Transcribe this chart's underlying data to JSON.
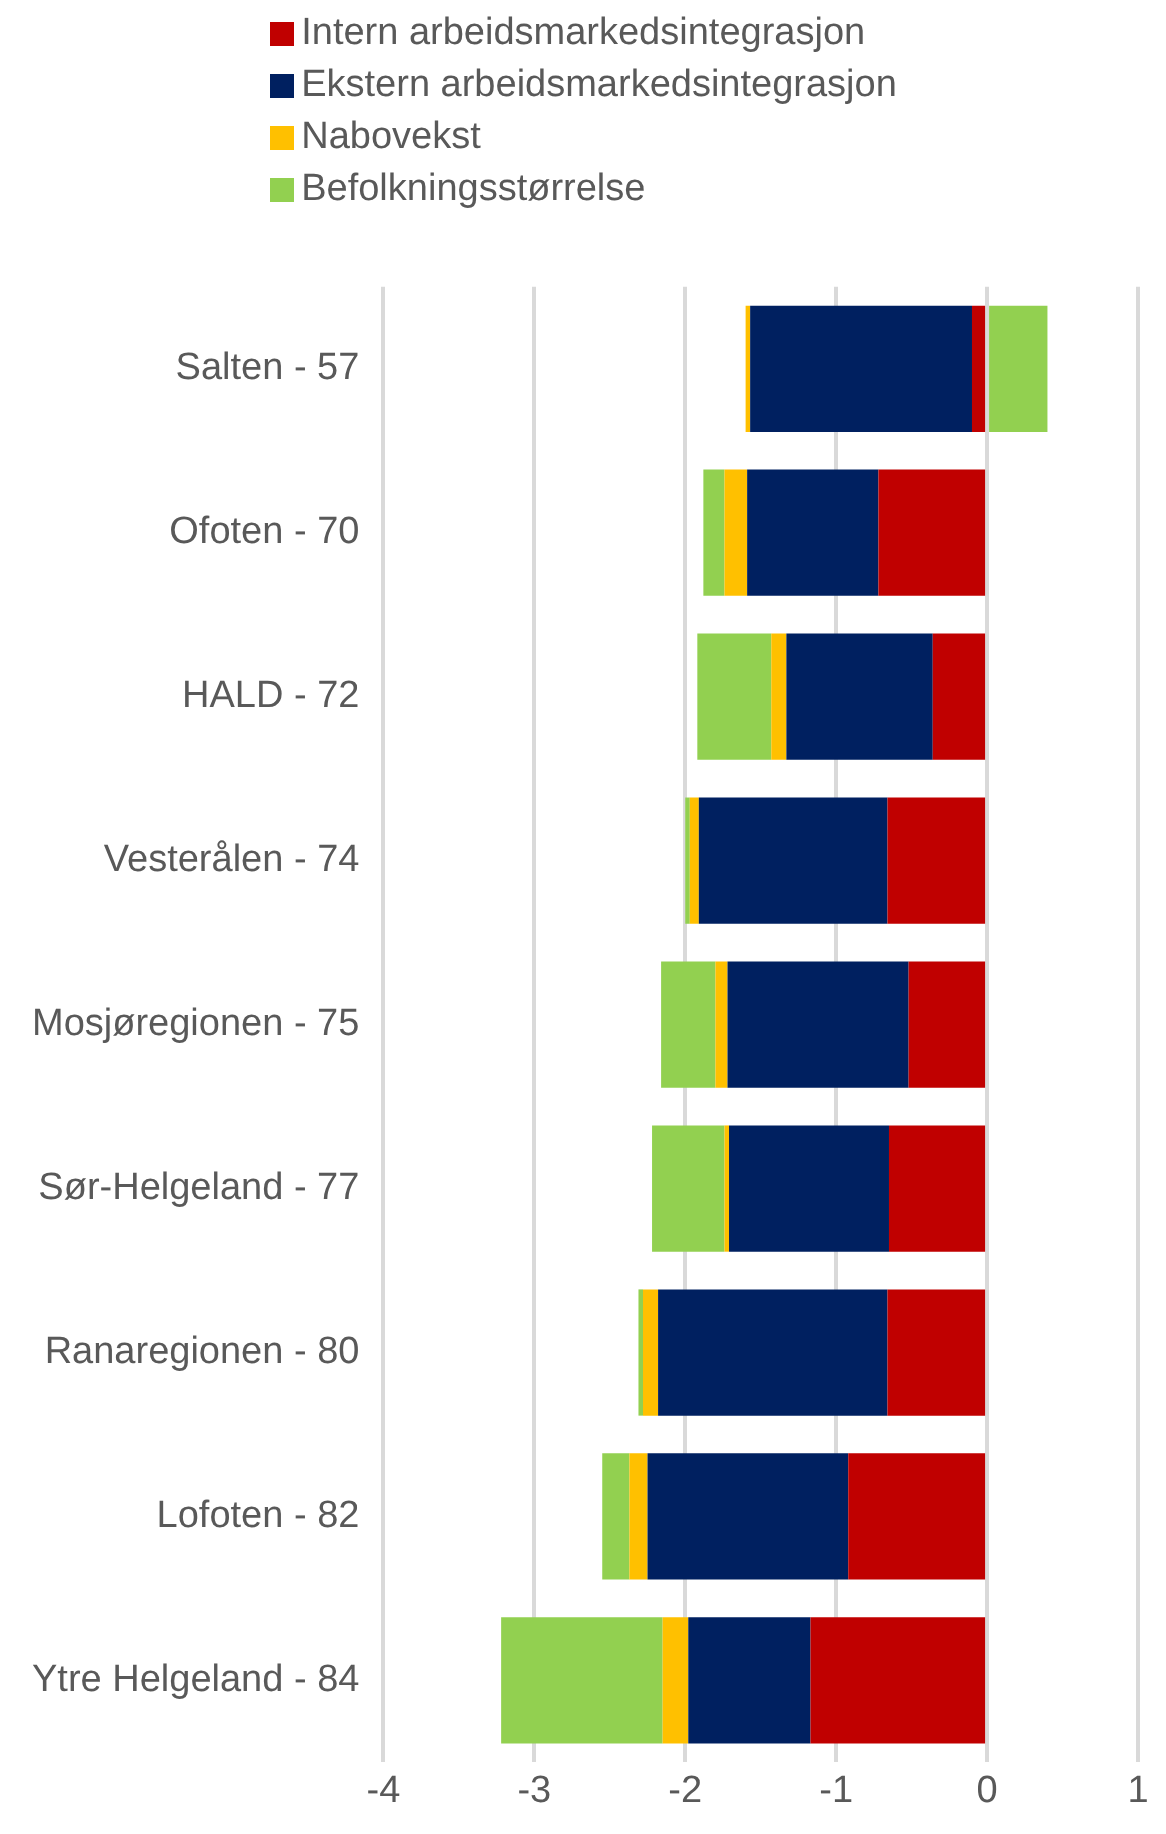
{
  "chart_data": {
    "type": "bar",
    "orientation": "horizontal",
    "stacked": true,
    "categories": [
      "Salten - 57",
      "Ofoten - 70",
      "HALD - 72",
      "Vesterålen - 74",
      "Mosjøregionen - 75",
      "Sør-Helgeland - 77",
      "Ranaregionen - 80",
      "Lofoten - 82",
      "Ytre Helgeland - 84"
    ],
    "series": [
      {
        "name": "Intern arbeidsmarkedsintegrasjon",
        "color": "#c00000",
        "values": [
          -0.1,
          -0.72,
          -0.36,
          -0.66,
          -0.52,
          -0.65,
          -0.66,
          -0.92,
          -1.17
        ]
      },
      {
        "name": "Ekstern arbeidsmarkedsintegrasjon",
        "color": "#002060",
        "values": [
          -1.47,
          -0.87,
          -0.97,
          -1.25,
          -1.2,
          -1.06,
          -1.52,
          -1.33,
          -0.81
        ]
      },
      {
        "name": "Nabovekst",
        "color": "#ffc000",
        "values": [
          -0.03,
          -0.15,
          -0.1,
          -0.06,
          -0.08,
          -0.03,
          -0.1,
          -0.12,
          -0.17
        ]
      },
      {
        "name": "Befolkningsstørrelse",
        "color": "#92d050",
        "values": [
          0.4,
          -0.14,
          -0.49,
          -0.03,
          -0.36,
          -0.48,
          -0.03,
          -0.18,
          -1.07
        ]
      }
    ],
    "xlim": [
      -4,
      1
    ],
    "xticks": [
      -4,
      -3,
      -2,
      -1,
      0,
      1
    ],
    "grid": "x",
    "legend": "top"
  }
}
